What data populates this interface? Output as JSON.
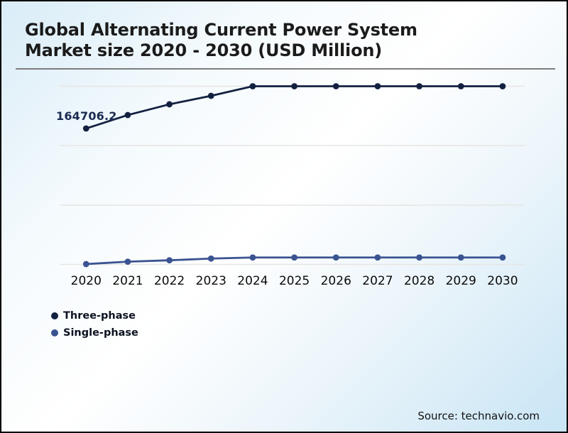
{
  "header": {
    "title_lines": [
      "Global Alternating Current Power System",
      "Market size 2020 - 2030 (USD Million)"
    ]
  },
  "footer": {
    "source": "Source: technavio.com"
  },
  "colors": {
    "three_phase": "#132140",
    "single_phase": "#3a5391",
    "gridline": "#e7e5e2",
    "divider": "#7d7d7d",
    "title_text": "#1b1b1b",
    "data_label_text": "#1b2b50",
    "background_top_left": "#d9ecf7",
    "background_bottom_right": "#c9e5f5"
  },
  "chart_data": {
    "type": "line",
    "title": "Global Alternating Current Power System Market size 2020 - 2030 (USD Million)",
    "categories": [
      "2020",
      "2021",
      "2022",
      "2023",
      "2024",
      "2025",
      "2026",
      "2027",
      "2028",
      "2029",
      "2030"
    ],
    "series": [
      {
        "name": "Three-phase",
        "color": "#132140",
        "values": [
          164706.2,
          181000,
          194000,
          204300,
          215900,
          215900,
          215900,
          215900,
          215900,
          215900,
          215900
        ]
      },
      {
        "name": "Single-phase",
        "color": "#3a5391",
        "values": [
          400,
          3300,
          5000,
          7100,
          8400,
          8400,
          8400,
          8400,
          8400,
          8400,
          8400
        ]
      }
    ],
    "data_labels": [
      {
        "series": "Three-phase",
        "category": "2020",
        "text": "164706.2"
      }
    ],
    "xlabel": "",
    "ylabel": "",
    "ylim": [
      0,
      215900
    ],
    "yaxis_tick_labels": [],
    "grid": "horizontal-only",
    "legend_position": "bottom-left",
    "note": "Only the 2020 Three-phase point carries a data label; remaining values estimated from point positions. Both series plateau from 2024 to 2030."
  }
}
